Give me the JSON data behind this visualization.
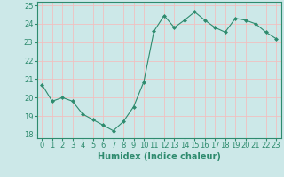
{
  "x": [
    0,
    1,
    2,
    3,
    4,
    5,
    6,
    7,
    8,
    9,
    10,
    11,
    12,
    13,
    14,
    15,
    16,
    17,
    18,
    19,
    20,
    21,
    22,
    23
  ],
  "y": [
    20.7,
    19.8,
    20.0,
    19.8,
    19.1,
    18.8,
    18.5,
    18.2,
    18.7,
    19.5,
    20.85,
    23.6,
    24.45,
    23.8,
    24.2,
    24.65,
    24.2,
    23.8,
    23.55,
    24.3,
    24.2,
    24.0,
    23.55,
    23.2
  ],
  "line_color": "#2e8b6e",
  "marker": "D",
  "marker_size": 2.0,
  "bg_color": "#cce8e8",
  "grid_color": "#f0c0c0",
  "xlabel": "Humidex (Indice chaleur)",
  "xlim": [
    -0.5,
    23.5
  ],
  "ylim": [
    17.8,
    25.2
  ],
  "yticks": [
    18,
    19,
    20,
    21,
    22,
    23,
    24,
    25
  ],
  "xticks": [
    0,
    1,
    2,
    3,
    4,
    5,
    6,
    7,
    8,
    9,
    10,
    11,
    12,
    13,
    14,
    15,
    16,
    17,
    18,
    19,
    20,
    21,
    22,
    23
  ],
  "tick_color": "#2e8b6e",
  "axis_color": "#2e8b6e",
  "label_fontsize": 7,
  "tick_fontsize": 6
}
